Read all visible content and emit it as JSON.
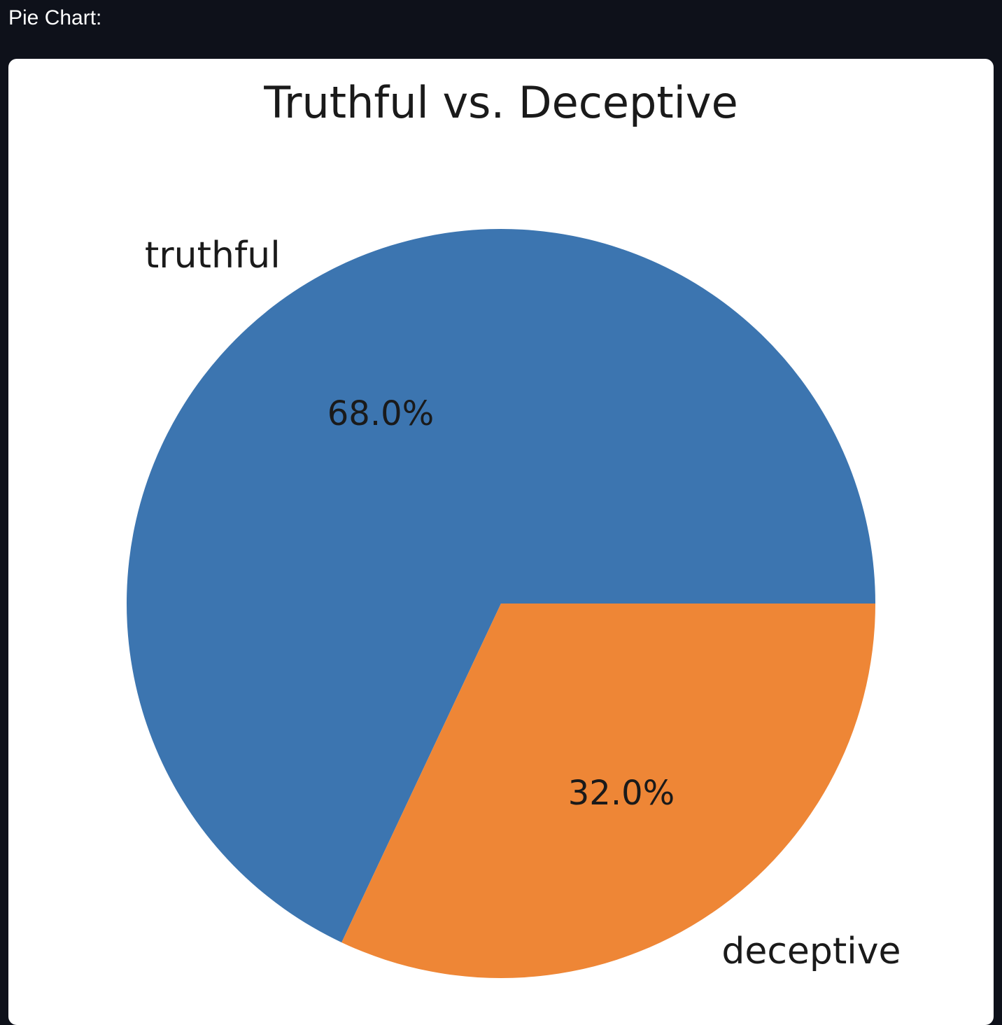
{
  "header": {
    "label": "Pie Chart:"
  },
  "chart_data": {
    "type": "pie",
    "title": "Truthful vs. Deceptive",
    "slices": [
      {
        "label": "truthful",
        "value": 68.0,
        "pct_label": "68.0%",
        "color": "#3c75b0"
      },
      {
        "label": "deceptive",
        "value": 32.0,
        "pct_label": "32.0%",
        "color": "#ee8636"
      }
    ],
    "legend": "none"
  }
}
